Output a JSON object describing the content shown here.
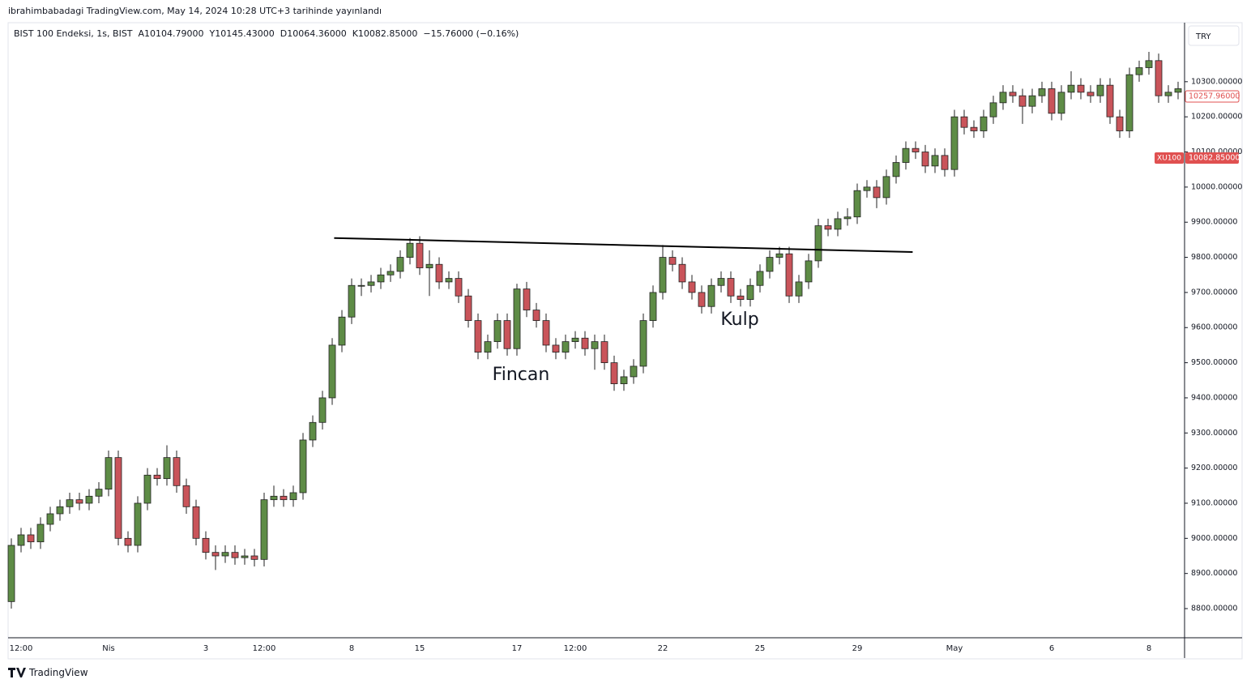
{
  "published": "ibrahimbabadagi TradingView.com, May 14, 2024 10:28 UTC+3 tarihinde yayınlandı",
  "footer": "TradingView",
  "chart_data": {
    "type": "candlestick",
    "header": [
      "BIST 100 Endeksi, 1s, BIST",
      "A10104.79000",
      "Y10145.43000",
      "D10064.36000",
      "K10082.85000",
      "−15.76000 (−0.16%)"
    ],
    "currency": "TRY",
    "up_color": "#5e8c46",
    "down_color": "#c9545a",
    "annotations": [
      "Fincan",
      "Kulp"
    ],
    "last_price": {
      "value": 10257.96,
      "label": "10257.96000"
    },
    "symbol_price": {
      "name": "XU100",
      "value": 10082.85,
      "label": "10082.85000"
    },
    "trendline": {
      "x": [
        33.2,
        92.7
      ],
      "y": [
        9855,
        9815
      ]
    },
    "ylim": [
      8717,
      10468
    ],
    "yticks": [
      {
        "value": 8800,
        "label": "8800.00000"
      },
      {
        "value": 8900,
        "label": "8900.00000"
      },
      {
        "value": 9000,
        "label": "9000.00000"
      },
      {
        "value": 9100,
        "label": "9100.00000"
      },
      {
        "value": 9200,
        "label": "9200.00000"
      },
      {
        "value": 9300,
        "label": "9300.00000"
      },
      {
        "value": 9400,
        "label": "9400.00000"
      },
      {
        "value": 9500,
        "label": "9500.00000"
      },
      {
        "value": 9600,
        "label": "9600.00000"
      },
      {
        "value": 9700,
        "label": "9700.00000"
      },
      {
        "value": 9800,
        "label": "9800.00000"
      },
      {
        "value": 9900,
        "label": "9900.00000"
      },
      {
        "value": 10000,
        "label": "10000.00000"
      },
      {
        "value": 10100,
        "label": "10100.00000"
      },
      {
        "value": 10200,
        "label": "10200.00000"
      },
      {
        "value": 10300,
        "label": "10300.00000"
      }
    ],
    "categories": [
      null,
      "12:00",
      null,
      null,
      null,
      null,
      null,
      null,
      null,
      null,
      "Nis",
      null,
      null,
      null,
      null,
      null,
      null,
      null,
      null,
      null,
      "3",
      null,
      null,
      null,
      null,
      null,
      "12:00",
      null,
      null,
      null,
      null,
      null,
      null,
      null,
      null,
      "8",
      null,
      null,
      null,
      null,
      null,
      null,
      "15",
      null,
      null,
      null,
      null,
      null,
      null,
      null,
      null,
      null,
      "17",
      null,
      null,
      null,
      null,
      null,
      "12:00",
      null,
      null,
      null,
      null,
      null,
      null,
      null,
      null,
      "22",
      null,
      null,
      null,
      null,
      null,
      null,
      null,
      null,
      null,
      "25",
      null,
      null,
      null,
      null,
      null,
      null,
      null,
      null,
      null,
      "29",
      null,
      null,
      null,
      null,
      null,
      null,
      null,
      null,
      null,
      "May",
      null,
      null,
      null,
      null,
      null,
      null,
      null,
      null,
      null,
      "6",
      null,
      null,
      null,
      null,
      null,
      null,
      null,
      null,
      null,
      "8",
      null,
      null,
      null
    ],
    "open": [
      8820,
      8980,
      9010,
      8990,
      9040,
      9070,
      9090,
      9110,
      9100,
      9120,
      9140,
      9230,
      9000,
      8980,
      9100,
      9180,
      9170,
      9230,
      9150,
      9090,
      9000,
      8960,
      8950,
      8960,
      8945,
      8950,
      8940,
      9110,
      9120,
      9110,
      9130,
      9280,
      9330,
      9400,
      9550,
      9630,
      9720,
      9720,
      9730,
      9750,
      9760,
      9800,
      9840,
      9770,
      9780,
      9730,
      9740,
      9690,
      9620,
      9530,
      9560,
      9620,
      9540,
      9710,
      9650,
      9620,
      9550,
      9530,
      9560,
      9570,
      9540,
      9560,
      9500,
      9440,
      9460,
      9490,
      9620,
      9700,
      9800,
      9780,
      9730,
      9700,
      9660,
      9720,
      9740,
      9690,
      9680,
      9720,
      9760,
      9800,
      9810,
      9690,
      9730,
      9790,
      9890,
      9880,
      9910,
      9915,
      9990,
      10000,
      9970,
      10030,
      10070,
      10110,
      10100,
      10060,
      10090,
      10050,
      10200,
      10170,
      10160,
      10200,
      10240,
      10270,
      10260,
      10230,
      10260,
      10280,
      10210,
      10270,
      10290,
      10270,
      10260,
      10290,
      10200,
      10160,
      10320,
      10340,
      10360,
      10260,
      10270
    ],
    "high": [
      9000,
      9030,
      9030,
      9060,
      9090,
      9110,
      9130,
      9130,
      9140,
      9160,
      9250,
      9250,
      9020,
      9120,
      9200,
      9200,
      9265,
      9250,
      9170,
      9110,
      9020,
      8980,
      8980,
      8980,
      8970,
      8970,
      9130,
      9150,
      9140,
      9150,
      9300,
      9350,
      9420,
      9570,
      9650,
      9740,
      9740,
      9750,
      9770,
      9780,
      9820,
      9855,
      9860,
      9820,
      9800,
      9760,
      9760,
      9710,
      9640,
      9580,
      9640,
      9640,
      9725,
      9730,
      9670,
      9640,
      9570,
      9580,
      9590,
      9590,
      9580,
      9580,
      9520,
      9480,
      9510,
      9640,
      9720,
      9835,
      9820,
      9800,
      9750,
      9720,
      9740,
      9760,
      9760,
      9710,
      9740,
      9780,
      9820,
      9830,
      9830,
      9750,
      9810,
      9910,
      9910,
      9930,
      9940,
      10010,
      10020,
      10020,
      10050,
      10090,
      10130,
      10130,
      10120,
      10110,
      10110,
      10220,
      10220,
      10190,
      10220,
      10260,
      10290,
      10290,
      10280,
      10280,
      10300,
      10300,
      10290,
      10330,
      10310,
      10290,
      10310,
      10310,
      10220,
      10340,
      10360,
      10385,
      10380,
      10290,
      10300
    ],
    "low": [
      8800,
      8960,
      8970,
      8970,
      9020,
      9050,
      9070,
      9080,
      9080,
      9100,
      9120,
      8980,
      8960,
      8960,
      9080,
      9150,
      9150,
      9130,
      9070,
      8980,
      8940,
      8910,
      8930,
      8925,
      8925,
      8920,
      8920,
      9090,
      9090,
      9090,
      9110,
      9260,
      9310,
      9380,
      9530,
      9610,
      9690,
      9700,
      9710,
      9730,
      9740,
      9780,
      9750,
      9690,
      9710,
      9710,
      9670,
      9600,
      9510,
      9510,
      9540,
      9520,
      9520,
      9630,
      9600,
      9530,
      9510,
      9510,
      9540,
      9520,
      9480,
      9480,
      9420,
      9420,
      9440,
      9470,
      9600,
      9680,
      9760,
      9710,
      9680,
      9640,
      9640,
      9700,
      9670,
      9660,
      9660,
      9700,
      9740,
      9780,
      9670,
      9670,
      9710,
      9770,
      9860,
      9860,
      9890,
      9895,
      9970,
      9940,
      9950,
      10010,
      10050,
      10080,
      10040,
      10040,
      10030,
      10030,
      10150,
      10140,
      10140,
      10180,
      10220,
      10240,
      10180,
      10210,
      10240,
      10190,
      10190,
      10250,
      10250,
      10240,
      10240,
      10180,
      10140,
      10140,
      10300,
      10320,
      10240,
      10240,
      10250
    ],
    "close": [
      8980,
      9010,
      8990,
      9040,
      9070,
      9090,
      9110,
      9100,
      9120,
      9140,
      9230,
      9000,
      8980,
      9100,
      9180,
      9170,
      9230,
      9150,
      9090,
      9000,
      8960,
      8950,
      8960,
      8945,
      8950,
      8940,
      9110,
      9120,
      9110,
      9130,
      9280,
      9330,
      9400,
      9550,
      9630,
      9720,
      9720,
      9730,
      9750,
      9760,
      9800,
      9840,
      9770,
      9780,
      9730,
      9740,
      9690,
      9620,
      9530,
      9560,
      9620,
      9540,
      9710,
      9650,
      9620,
      9550,
      9530,
      9560,
      9570,
      9540,
      9560,
      9500,
      9440,
      9460,
      9490,
      9620,
      9700,
      9800,
      9780,
      9730,
      9700,
      9660,
      9720,
      9740,
      9690,
      9680,
      9720,
      9760,
      9800,
      9810,
      9690,
      9730,
      9790,
      9890,
      9880,
      9910,
      9915,
      9990,
      10000,
      9970,
      10030,
      10070,
      10110,
      10100,
      10060,
      10090,
      10050,
      10200,
      10170,
      10160,
      10200,
      10240,
      10270,
      10260,
      10230,
      10260,
      10280,
      10210,
      10270,
      10290,
      10270,
      10260,
      10290,
      10200,
      10160,
      10320,
      10340,
      10360,
      10260,
      10270,
      10280
    ]
  }
}
